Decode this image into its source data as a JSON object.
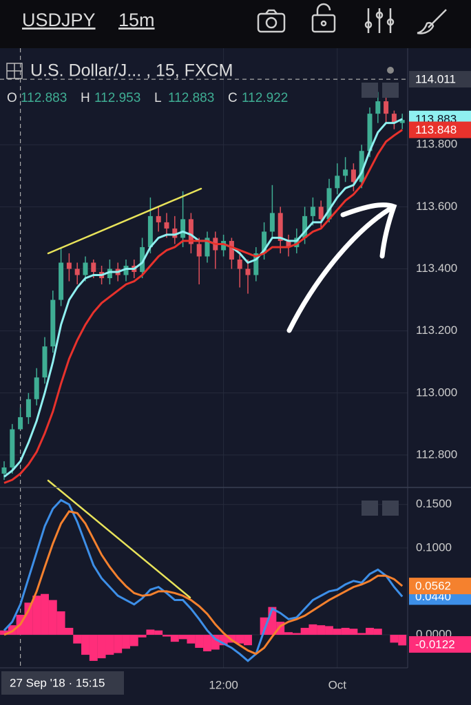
{
  "header": {
    "symbol": "USDJPY",
    "interval": "15m"
  },
  "chart_data": [
    {
      "type": "candlestick",
      "title": "U.S. Dollar/J... , 15, FXCM",
      "ohlc_labels": [
        "O",
        "H",
        "L",
        "C"
      ],
      "categories": [
        null,
        null,
        "27 Sep '18 · 15:15",
        null,
        null,
        null,
        null,
        null,
        null,
        null,
        null,
        null,
        null,
        null,
        null,
        null,
        null,
        null,
        null,
        null,
        null,
        null,
        null,
        null,
        null,
        null,
        null,
        "12:00",
        null,
        null,
        null,
        null,
        null,
        null,
        null,
        null,
        null,
        null,
        null,
        null,
        null,
        "Oct",
        null,
        null,
        null,
        null,
        null,
        null,
        null,
        null
      ],
      "open": [
        112.74,
        112.76,
        112.883,
        112.922,
        112.98,
        113.05,
        113.15,
        113.3,
        113.42,
        113.4,
        113.38,
        113.42,
        113.39,
        113.37,
        113.4,
        113.38,
        113.41,
        113.39,
        113.47,
        113.57,
        113.55,
        113.53,
        113.5,
        113.56,
        113.48,
        113.44,
        113.5,
        113.46,
        113.49,
        113.43,
        113.4,
        113.38,
        113.45,
        113.52,
        113.58,
        113.49,
        113.47,
        113.5,
        113.57,
        113.6,
        113.56,
        113.66,
        113.7,
        113.72,
        113.68,
        113.78,
        113.9,
        113.94,
        113.9,
        113.87
      ],
      "high": [
        112.78,
        112.9,
        112.953,
        113.0,
        113.08,
        113.18,
        113.33,
        113.47,
        113.45,
        113.42,
        113.44,
        113.43,
        113.41,
        113.43,
        113.42,
        113.43,
        113.43,
        113.5,
        113.63,
        113.6,
        113.58,
        113.57,
        113.65,
        113.58,
        113.5,
        113.52,
        113.52,
        113.51,
        113.5,
        113.45,
        113.43,
        113.47,
        113.55,
        113.67,
        113.6,
        113.51,
        113.53,
        113.6,
        113.63,
        113.62,
        113.69,
        113.74,
        113.76,
        113.74,
        113.8,
        113.92,
        113.97,
        113.96,
        113.91,
        113.9
      ],
      "low": [
        112.72,
        112.74,
        112.883,
        112.9,
        112.96,
        113.03,
        113.13,
        113.28,
        113.36,
        113.35,
        113.36,
        113.37,
        113.35,
        113.35,
        113.36,
        113.36,
        113.37,
        113.37,
        113.45,
        113.52,
        113.5,
        113.48,
        113.47,
        113.45,
        113.35,
        113.42,
        113.4,
        113.44,
        113.4,
        113.34,
        113.32,
        113.36,
        113.43,
        113.5,
        113.45,
        113.44,
        113.45,
        113.48,
        113.54,
        113.53,
        113.55,
        113.64,
        113.68,
        113.65,
        113.66,
        113.76,
        113.87,
        113.87,
        113.85,
        113.85
      ],
      "close": [
        112.76,
        112.883,
        112.922,
        112.98,
        113.05,
        113.15,
        113.3,
        113.42,
        113.4,
        113.38,
        113.42,
        113.39,
        113.37,
        113.4,
        113.38,
        113.41,
        113.39,
        113.47,
        113.57,
        113.55,
        113.53,
        113.5,
        113.56,
        113.48,
        113.44,
        113.5,
        113.46,
        113.49,
        113.43,
        113.4,
        113.38,
        113.45,
        113.52,
        113.58,
        113.49,
        113.47,
        113.5,
        113.57,
        113.6,
        113.56,
        113.66,
        113.7,
        113.72,
        113.68,
        113.78,
        113.9,
        113.94,
        113.9,
        113.87,
        113.88
      ],
      "up_color": "#3fae94",
      "down_color": "#e0505b",
      "series": [
        {
          "color": "#8ff0f0",
          "values": [
            112.73,
            112.75,
            112.78,
            112.84,
            112.91,
            113.0,
            113.1,
            113.22,
            113.3,
            113.34,
            113.37,
            113.38,
            113.38,
            113.39,
            113.39,
            113.4,
            113.4,
            113.42,
            113.47,
            113.5,
            113.51,
            113.51,
            113.52,
            113.51,
            113.49,
            113.49,
            113.48,
            113.48,
            113.47,
            113.45,
            113.42,
            113.43,
            113.46,
            113.5,
            113.5,
            113.49,
            113.49,
            113.52,
            113.55,
            113.55,
            113.59,
            113.63,
            113.66,
            113.67,
            113.71,
            113.78,
            113.84,
            113.87,
            113.87,
            113.883
          ]
        },
        {
          "color": "#e8322c",
          "values": [
            112.71,
            112.72,
            112.74,
            112.77,
            112.81,
            112.87,
            112.94,
            113.03,
            113.11,
            113.17,
            113.22,
            113.26,
            113.29,
            113.31,
            113.33,
            113.35,
            113.36,
            113.38,
            113.41,
            113.44,
            113.46,
            113.47,
            113.49,
            113.49,
            113.49,
            113.49,
            113.48,
            113.48,
            113.47,
            113.46,
            113.45,
            113.44,
            113.45,
            113.47,
            113.47,
            113.47,
            113.48,
            113.5,
            113.52,
            113.53,
            113.56,
            113.59,
            113.62,
            113.64,
            113.67,
            113.72,
            113.77,
            113.81,
            113.83,
            113.848
          ]
        }
      ],
      "crosshair_price": 114.011,
      "ylim": [
        112.7,
        114.1
      ],
      "yticks": [
        {
          "value": 112.8,
          "label": "112.800"
        },
        {
          "value": 113.0,
          "label": "113.000"
        },
        {
          "value": 113.2,
          "label": "113.200"
        },
        {
          "value": 113.4,
          "label": "113.400"
        },
        {
          "value": 113.6,
          "label": "113.600"
        },
        {
          "value": 113.8,
          "label": "113.800"
        }
      ],
      "grid": true
    },
    {
      "type": "line",
      "series": [
        {
          "color": "#3d8fe8",
          "values": [
            0.005,
            0.015,
            0.035,
            0.065,
            0.095,
            0.125,
            0.145,
            0.155,
            0.15,
            0.13,
            0.105,
            0.08,
            0.065,
            0.055,
            0.045,
            0.04,
            0.035,
            0.042,
            0.052,
            0.055,
            0.048,
            0.04,
            0.04,
            0.03,
            0.018,
            0.005,
            -0.005,
            -0.01,
            -0.015,
            -0.022,
            -0.03,
            -0.022,
            0.005,
            0.03,
            0.025,
            0.018,
            0.02,
            0.03,
            0.04,
            0.045,
            0.05,
            0.052,
            0.058,
            0.062,
            0.06,
            0.07,
            0.075,
            0.068,
            0.055,
            0.044
          ],
          "value_labels_last": "0.0440"
        },
        {
          "color": "#f5812e",
          "values": [
            0.0,
            0.004,
            0.012,
            0.028,
            0.05,
            0.078,
            0.105,
            0.128,
            0.142,
            0.14,
            0.128,
            0.11,
            0.092,
            0.078,
            0.066,
            0.056,
            0.048,
            0.045,
            0.046,
            0.05,
            0.05,
            0.048,
            0.045,
            0.04,
            0.033,
            0.024,
            0.012,
            0.002,
            -0.006,
            -0.012,
            -0.018,
            -0.022,
            -0.015,
            -0.002,
            0.01,
            0.015,
            0.018,
            0.022,
            0.028,
            0.034,
            0.04,
            0.045,
            0.05,
            0.055,
            0.058,
            0.062,
            0.068,
            0.068,
            0.064,
            0.0562
          ],
          "value_labels_last": "0.0562"
        }
      ],
      "histogram": {
        "color": "#ff2d7a",
        "values": [
          0.005,
          0.011,
          0.023,
          0.037,
          0.045,
          0.047,
          0.04,
          0.027,
          0.008,
          -0.01,
          -0.023,
          -0.03,
          -0.027,
          -0.023,
          -0.021,
          -0.016,
          -0.013,
          -0.003,
          0.006,
          0.005,
          -0.002,
          -0.008,
          -0.005,
          -0.01,
          -0.015,
          -0.019,
          -0.017,
          -0.012,
          -0.009,
          -0.01,
          -0.012,
          0.0,
          0.02,
          0.032,
          0.015,
          0.003,
          0.002,
          0.008,
          0.012,
          0.011,
          0.01,
          0.007,
          0.008,
          0.007,
          0.002,
          0.008,
          0.007,
          0.0,
          -0.009,
          -0.0122
        ]
      },
      "ylim": [
        -0.038,
        0.168
      ],
      "yticks": [
        {
          "value": 0,
          "label": "0.0000"
        },
        {
          "value": 0.1,
          "label": "0.1000"
        },
        {
          "value": 0.15,
          "label": "0.1500"
        }
      ],
      "grid": true
    }
  ]
}
